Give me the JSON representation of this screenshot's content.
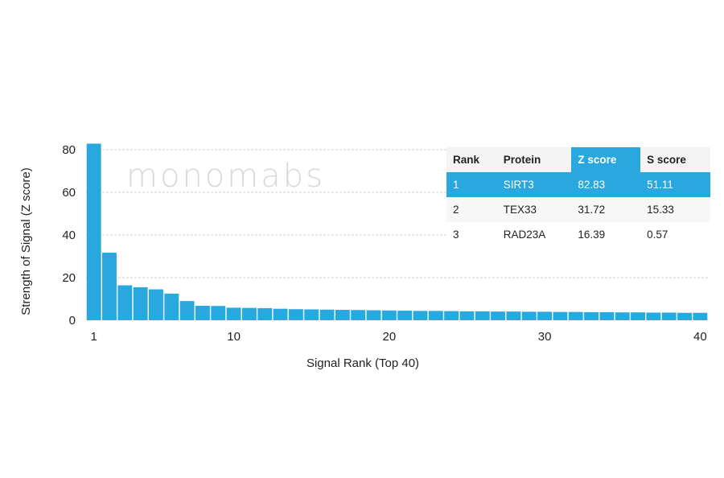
{
  "watermark": "monomabs",
  "table": {
    "headers": [
      "Rank",
      "Protein",
      "Z score",
      "S score"
    ],
    "rows": [
      [
        "1",
        "SIRT3",
        "82.83",
        "51.11"
      ],
      [
        "2",
        "TEX33",
        "31.72",
        "15.33"
      ],
      [
        "3",
        "RAD23A",
        "16.39",
        "0.57"
      ]
    ],
    "highlight_color": "#29a8df"
  },
  "chart_data": {
    "type": "bar",
    "xlabel": "Signal Rank (Top 40)",
    "ylabel": "Strength of Signal (Z score)",
    "ylim": [
      0,
      80
    ],
    "yticks": [
      0,
      20,
      40,
      60,
      80
    ],
    "xticks": [
      1,
      10,
      20,
      30,
      40
    ],
    "grid": true,
    "bar_color": "#29a8df",
    "categories": [
      1,
      2,
      3,
      4,
      5,
      6,
      7,
      8,
      9,
      10,
      11,
      12,
      13,
      14,
      15,
      16,
      17,
      18,
      19,
      20,
      21,
      22,
      23,
      24,
      25,
      26,
      27,
      28,
      29,
      30,
      31,
      32,
      33,
      34,
      35,
      36,
      37,
      38,
      39,
      40
    ],
    "values": [
      82.83,
      31.72,
      16.39,
      15.5,
      14.5,
      12.5,
      9.0,
      6.8,
      6.7,
      5.9,
      5.8,
      5.7,
      5.4,
      5.2,
      5.1,
      5.0,
      4.9,
      4.8,
      4.7,
      4.6,
      4.5,
      4.4,
      4.4,
      4.3,
      4.2,
      4.2,
      4.1,
      4.1,
      4.0,
      4.0,
      3.9,
      3.9,
      3.8,
      3.8,
      3.7,
      3.7,
      3.6,
      3.6,
      3.5,
      3.5
    ]
  }
}
